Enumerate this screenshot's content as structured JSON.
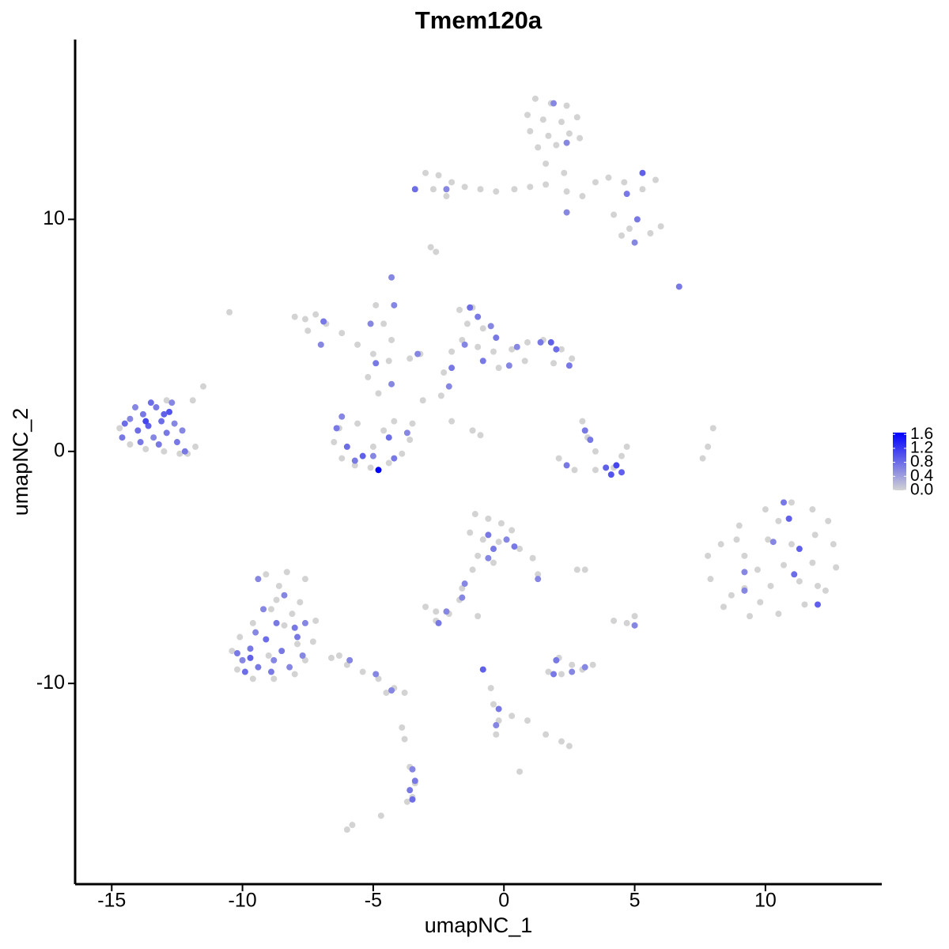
{
  "chart_data": {
    "type": "scatter",
    "title": "Tmem120a",
    "x_label": "umapNC_1",
    "y_label": "umapNC_2",
    "xlim": [
      -16.4,
      14.45
    ],
    "ylim": [
      -18.65,
      17.75
    ],
    "xticks": [
      -15,
      -10,
      -5,
      0,
      5,
      10
    ],
    "yticks": [
      -10,
      0,
      10
    ],
    "color_low": "#d3d3d3",
    "color_high": "#0000ff",
    "clim": [
      0,
      1.65
    ],
    "cticks": [
      {
        "value": 0,
        "label": "0.0"
      },
      {
        "value": 0.4,
        "label": "0.4"
      },
      {
        "value": 0.8,
        "label": "0.8"
      },
      {
        "value": 1.2,
        "label": "1.2"
      },
      {
        "value": 1.6,
        "label": "1.6"
      }
    ],
    "x": [
      1.2,
      1.8,
      2.4,
      0.9,
      1.5,
      2.2,
      2.8,
      1.0,
      1.7,
      2.5,
      1.3,
      2.0,
      2.9,
      1.6,
      2.3,
      -3.0,
      -2.5,
      -2.0,
      -1.5,
      -0.9,
      -0.3,
      0.4,
      1.0,
      1.6,
      2.4,
      3.0,
      3.5,
      4.0,
      4.6,
      5.3,
      5.8,
      4.2,
      4.8,
      5.6,
      6.0,
      4.5,
      -2.7,
      -2.2,
      -2.8,
      -2.6,
      -7.6,
      -7.2,
      -7.5,
      -6.8,
      -6.2,
      -5.6,
      -5.0,
      -4.4,
      -3.6,
      -3.2,
      -4.9,
      -4.6,
      -4.3,
      -5.2,
      -4.8,
      -8.0,
      -6.3,
      -6.5,
      -6.2,
      -5.7,
      -5.1,
      -4.4,
      -3.9,
      -3.6,
      -3.5,
      -4.2,
      -5.0,
      -4.6,
      -5.6,
      -1.7,
      -1.2,
      -1.4,
      -0.8,
      -1.6,
      -1.0,
      -0.4,
      0.3,
      0.9,
      1.5,
      2.2,
      2.6,
      1.9,
      0.8,
      -0.2,
      -2.0,
      -2.3,
      -2.4,
      -2.0,
      -1.2,
      -0.9,
      -3.1,
      3.0,
      3.2,
      3.5,
      2.1,
      2.7,
      3.5,
      4.2,
      4.5,
      4.7,
      8.0,
      7.8,
      7.6,
      9.0,
      10.0,
      11.0,
      11.8,
      12.4,
      12.6,
      12.7,
      12.3,
      11.5,
      10.5,
      9.4,
      8.4,
      7.9,
      7.8,
      8.3,
      9.2,
      10.1,
      11.0,
      11.8,
      11.3,
      10.2,
      9.2,
      8.7,
      10.7,
      9.7,
      11.9,
      10.5,
      9.8,
      12.0,
      8.9,
      -10.4,
      -10.2,
      -9.6,
      -8.8,
      -8.0,
      -7.6,
      -7.3,
      -7.2,
      -7.8,
      -8.6,
      -9.1,
      -8.3,
      -7.6,
      -8.9,
      -9.6,
      -10.1,
      -8.4,
      -7.9,
      -9.0,
      -8.1,
      -8.7,
      -6.6,
      -6.0,
      -5.4,
      -4.8,
      -4.2,
      -3.8,
      -4.5,
      -6.3,
      -3.9,
      -3.8,
      -3.6,
      -3.4,
      -3.5,
      -3.7,
      -6.0,
      -5.8,
      -4.7,
      -1.1,
      -0.6,
      -0.1,
      0.3,
      -1.3,
      -0.8,
      -0.2,
      0.6,
      1.1,
      1.3,
      -1.0,
      -0.4,
      -1.2,
      -3.0,
      -2.6,
      -2.1,
      -2.6,
      -1.7,
      -1.6,
      -1.0,
      3.1,
      2.8,
      5.0,
      4.7,
      4.2,
      2.1,
      2.6,
      3.0,
      3.4,
      1.7,
      2.2,
      -0.8,
      -0.5,
      -0.4,
      -0.2,
      0.3,
      0.9,
      1.6,
      2.2,
      2.5,
      -0.3,
      0.6,
      -10.5,
      -11.5,
      -11.9,
      -11.8,
      -12.1,
      -14.7,
      -14.3,
      -13.7,
      -13.0,
      -12.4,
      -12.9,
      -14.6,
      -14.3,
      -14.0,
      -13.8,
      -13.6,
      -13.4,
      -13.3,
      -13.1,
      -12.9,
      -12.8,
      -12.6,
      -12.5,
      -14.1,
      -13.9,
      -13.5,
      -12.7,
      -14.5,
      -13.2,
      -12.3,
      -12.2,
      -13.7,
      -13.0,
      1.9,
      2.4,
      5.3,
      4.7,
      -3.4,
      -2.2,
      2.4,
      5.1,
      6.7,
      5.0,
      -4.3,
      -4.2,
      -6.9,
      -7.0,
      -5.1,
      -4.9,
      -4.3,
      -3.3,
      -6.4,
      -6.0,
      -5.7,
      -5.0,
      -4.8,
      -4.4,
      -4.2,
      -3.7,
      -5.4,
      -6.2,
      -1.3,
      -1.0,
      -0.5,
      -0.3,
      -1.5,
      -2.0,
      -2.1,
      0.5,
      1.4,
      1.8,
      2.0,
      2.5,
      0.2,
      -0.8,
      3.1,
      3.3,
      2.4,
      3.9,
      4.1,
      4.3,
      4.5,
      10.7,
      10.9,
      10.3,
      11.3,
      9.2,
      11.1,
      12.0,
      9.2,
      -10.0,
      -9.7,
      -9.4,
      -9.1,
      -8.8,
      -8.5,
      -8.2,
      -7.9,
      -9.5,
      -8.7,
      -9.2,
      -8.4,
      -9.4,
      -7.6,
      -9.9,
      -8.9,
      -7.7,
      -9.7,
      -8.0,
      -10.2,
      -5.9,
      -4.9,
      -4.3,
      -3.5,
      -3.4,
      -3.5,
      -3.6,
      -0.6,
      -0.4,
      0.1,
      -0.6,
      0.4,
      1.3,
      -1.5,
      -2.5,
      -2.2,
      -1.6,
      2.0,
      2.6,
      3.1,
      1.9,
      -0.8,
      -0.2,
      -0.3,
      5.0
    ],
    "y": [
      15.2,
      15.0,
      14.9,
      14.5,
      14.3,
      14.2,
      14.4,
      13.8,
      13.6,
      13.7,
      13.1,
      13.2,
      13.5,
      12.4,
      12.0,
      12.0,
      11.9,
      11.6,
      11.4,
      11.3,
      11.2,
      11.3,
      11.4,
      11.5,
      11.2,
      11.0,
      11.6,
      11.8,
      11.6,
      11.3,
      11.7,
      10.2,
      9.6,
      9.4,
      9.7,
      9.3,
      11.3,
      11.0,
      8.8,
      8.6,
      5.7,
      5.9,
      5.2,
      5.5,
      5.1,
      4.6,
      4.2,
      3.9,
      4.0,
      4.2,
      6.3,
      5.5,
      4.8,
      3.2,
      2.5,
      5.8,
      1.0,
      0.4,
      -0.3,
      -0.6,
      -0.7,
      -0.5,
      -0.1,
      0.5,
      1.2,
      1.3,
      0.2,
      0.9,
      1.2,
      6.1,
      6.2,
      5.5,
      5.3,
      4.8,
      4.5,
      4.3,
      4.4,
      4.7,
      4.8,
      4.4,
      4.0,
      3.8,
      3.9,
      3.6,
      4.3,
      3.4,
      2.4,
      1.3,
      0.9,
      0.7,
      2.2,
      1.3,
      0.6,
      0.0,
      -0.3,
      -0.8,
      -0.8,
      -0.7,
      -0.2,
      0.2,
      1.0,
      0.2,
      -0.3,
      -3.2,
      -2.5,
      -2.2,
      -2.5,
      -3.0,
      -4.0,
      -5.0,
      -6.0,
      -6.6,
      -7.0,
      -7.1,
      -6.7,
      -5.5,
      -4.5,
      -4.0,
      -4.5,
      -3.8,
      -4.0,
      -4.8,
      -5.6,
      -5.8,
      -5.9,
      -6.2,
      -4.9,
      -5.1,
      -3.6,
      -3.0,
      -6.5,
      -5.8,
      -3.8,
      -8.6,
      -9.4,
      -9.8,
      -9.8,
      -9.6,
      -9.0,
      -8.2,
      -7.3,
      -6.5,
      -5.8,
      -5.3,
      -5.2,
      -5.5,
      -6.8,
      -7.4,
      -8.0,
      -7.5,
      -8.3,
      -8.8,
      -7.0,
      -6.4,
      -8.9,
      -9.2,
      -9.5,
      -9.8,
      -10.2,
      -10.4,
      -10.4,
      -8.8,
      -11.9,
      -12.4,
      -13.6,
      -14.3,
      -14.9,
      -15.1,
      -16.3,
      -16.1,
      -15.7,
      -2.7,
      -2.9,
      -3.1,
      -3.4,
      -3.5,
      -3.8,
      -3.9,
      -4.2,
      -4.6,
      -5.3,
      -4.5,
      -4.8,
      -5.1,
      -6.7,
      -6.9,
      -7.0,
      -7.3,
      -6.4,
      -5.9,
      -7.1,
      -5.1,
      -5.1,
      -7.1,
      -7.4,
      -7.3,
      -8.9,
      -9.2,
      -9.4,
      -9.2,
      -9.5,
      -9.6,
      -9.4,
      -10.2,
      -10.9,
      -11.6,
      -11.4,
      -11.6,
      -12.2,
      -12.5,
      -12.7,
      -12.2,
      -13.8,
      6.0,
      2.8,
      2.2,
      0.2,
      -0.1,
      1.0,
      0.3,
      0.1,
      0.0,
      -0.1,
      2.2,
      0.6,
      1.4,
      0.9,
      1.6,
      1.1,
      0.6,
      1.9,
      1.3,
      0.8,
      1.7,
      1.2,
      0.4,
      1.9,
      0.4,
      2.1,
      2.1,
      1.2,
      0.3,
      0.9,
      0.0,
      1.3,
      1.6,
      15.0,
      13.3,
      12.0,
      11.1,
      11.3,
      11.3,
      10.3,
      10.0,
      7.1,
      9.0,
      7.5,
      6.3,
      5.6,
      4.6,
      5.5,
      3.8,
      2.9,
      4.2,
      1.0,
      0.2,
      -0.4,
      -0.2,
      -0.8,
      0.6,
      -0.3,
      0.8,
      -0.2,
      1.5,
      6.2,
      5.8,
      5.4,
      4.9,
      4.6,
      3.6,
      2.8,
      4.5,
      4.7,
      4.7,
      4.4,
      3.7,
      3.7,
      3.9,
      0.9,
      0.5,
      -0.6,
      -0.7,
      -1.0,
      -0.6,
      -0.9,
      -2.2,
      -2.9,
      -3.9,
      -4.2,
      -5.2,
      -5.3,
      -6.6,
      -6.0,
      -9.0,
      -8.5,
      -9.3,
      -8.1,
      -9.0,
      -8.6,
      -9.3,
      -8.0,
      -7.8,
      -7.4,
      -6.8,
      -6.2,
      -5.5,
      -7.4,
      -9.5,
      -9.5,
      -8.8,
      -8.9,
      -7.6,
      -8.7,
      -9.0,
      -9.6,
      -10.3,
      -13.7,
      -14.2,
      -15.0,
      -14.6,
      -3.6,
      -4.2,
      -3.8,
      -4.6,
      -4.1,
      -5.5,
      -5.7,
      -7.4,
      -6.9,
      -6.3,
      -9.0,
      -9.5,
      -9.3,
      -9.6,
      -9.4,
      -11.1,
      -11.8,
      -7.5
    ],
    "values": [
      0,
      0,
      0,
      0,
      0,
      0,
      0,
      0,
      0,
      0,
      0,
      0,
      0,
      0,
      0,
      0,
      0,
      0,
      0,
      0,
      0,
      0,
      0,
      0,
      0,
      0,
      0,
      0,
      0,
      0,
      0,
      0,
      0,
      0,
      0,
      0,
      0,
      0,
      0,
      0,
      0,
      0,
      0,
      0,
      0,
      0,
      0,
      0,
      0,
      0,
      0,
      0,
      0,
      0,
      0,
      0,
      0,
      0,
      0,
      0,
      0,
      0,
      0,
      0,
      0,
      0,
      0,
      0,
      0,
      0,
      0,
      0,
      0,
      0,
      0,
      0,
      0,
      0,
      0,
      0,
      0,
      0,
      0,
      0,
      0,
      0,
      0,
      0,
      0,
      0,
      0,
      0,
      0,
      0,
      0,
      0,
      0,
      0,
      0,
      0,
      0,
      0,
      0,
      0,
      0,
      0,
      0,
      0,
      0,
      0,
      0,
      0,
      0,
      0,
      0,
      0,
      0,
      0,
      0,
      0,
      0,
      0,
      0,
      0,
      0,
      0,
      0,
      0,
      0,
      0,
      0,
      0,
      0,
      0,
      0,
      0,
      0,
      0,
      0,
      0,
      0,
      0,
      0,
      0,
      0,
      0,
      0,
      0,
      0,
      0,
      0,
      0,
      0,
      0,
      0,
      0,
      0,
      0,
      0,
      0,
      0,
      0,
      0,
      0,
      0,
      0,
      0,
      0,
      0,
      0,
      0,
      0,
      0,
      0,
      0,
      0,
      0,
      0,
      0,
      0,
      0,
      0,
      0,
      0,
      0,
      0,
      0,
      0,
      0,
      0,
      0,
      0,
      0,
      0,
      0,
      0,
      0,
      0,
      0,
      0,
      0,
      0,
      0,
      0,
      0,
      0,
      0,
      0,
      0,
      0,
      0,
      0,
      0,
      0,
      0,
      0,
      0,
      0,
      0,
      0,
      0,
      0,
      0,
      0,
      0.7,
      0.6,
      0.8,
      0.7,
      0.9,
      0.6,
      0.7,
      0.8,
      0.7,
      1.0,
      0.6,
      0.7,
      0.6,
      0.7,
      0.8,
      0.6,
      0.8,
      0.7,
      0.6,
      0.7,
      1.1,
      0.9,
      0.6,
      0.6,
      0.9,
      0.7,
      0.8,
      0.6,
      0.6,
      0.7,
      0.7,
      0.6,
      0.6,
      0.6,
      0.7,
      0.6,
      0.6,
      0.7,
      0.6,
      0.6,
      0.7,
      0.8,
      0.7,
      0.6,
      1.65,
      0.8,
      0.7,
      0.6,
      0.9,
      0.6,
      0.8,
      0.7,
      0.6,
      0.7,
      0.6,
      0.7,
      0.6,
      0.6,
      0.7,
      0.9,
      0.8,
      0.7,
      0.6,
      0.7,
      0.7,
      0.7,
      0.7,
      0.9,
      1.0,
      1.1,
      0.9,
      0.7,
      0.9,
      0.6,
      0.9,
      0.6,
      0.8,
      0.9,
      0.6,
      0.6,
      0.7,
      0.7,
      0.8,
      0.6,
      0.7,
      0.6,
      0.7,
      0.6,
      0.7,
      0.6,
      0.6,
      0.6,
      0.6,
      0.8,
      0.7,
      0.6,
      0.9,
      0.7,
      0.7,
      0.6,
      0.6,
      0.6,
      0.6,
      0.7,
      0.8,
      0.7,
      0.7,
      0.7,
      0.6,
      0.6,
      0.7,
      0.6,
      0.6,
      0.7,
      0.6,
      0.6,
      0.7,
      0.6,
      0.6,
      0.7,
      0.9,
      0.7,
      0.6,
      0.6
    ]
  }
}
